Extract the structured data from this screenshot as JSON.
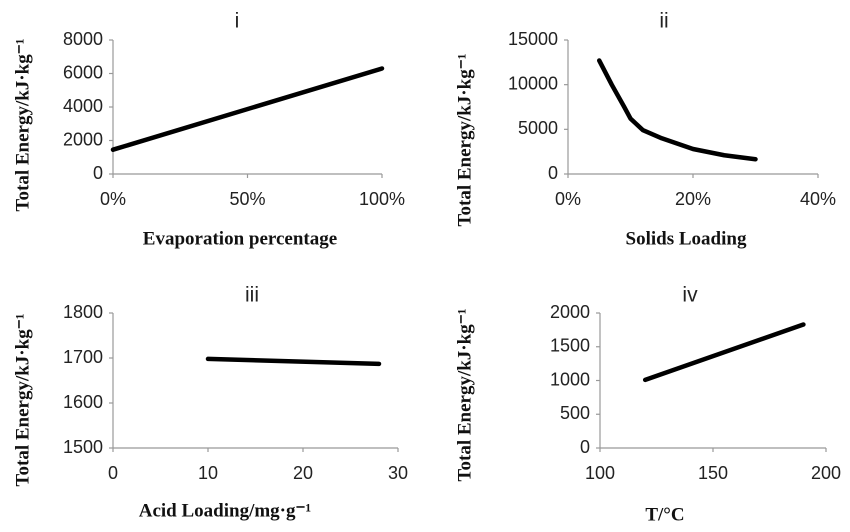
{
  "chart_data": [
    {
      "type": "line",
      "title": "i",
      "ylabel": "Total Energy/kJ·kg⁻¹",
      "xlabel": "Evaporation percentage",
      "x": [
        0,
        100
      ],
      "values": [
        1450,
        6300
      ],
      "color": "#000000",
      "xlim": [
        0,
        100
      ],
      "xticks": [
        {
          "value": 0,
          "label": "0%"
        },
        {
          "value": 50,
          "label": "50%"
        },
        {
          "value": 100,
          "label": "100%"
        }
      ],
      "ylim": [
        0,
        8000
      ],
      "yticks": [
        0,
        2000,
        4000,
        6000,
        8000
      ],
      "grid": false
    },
    {
      "type": "line",
      "title": "ii",
      "ylabel": "Total Energy/kJ·kg⁻¹",
      "xlabel": "Solids Loading",
      "x": [
        5,
        7,
        9,
        10,
        12,
        15,
        20,
        25,
        30
      ],
      "values": [
        12700,
        10000,
        7500,
        6200,
        4900,
        4000,
        2800,
        2100,
        1650
      ],
      "color": "#000000",
      "xlim": [
        0,
        40
      ],
      "xticks": [
        {
          "value": 0,
          "label": "0%"
        },
        {
          "value": 20,
          "label": "20%"
        },
        {
          "value": 40,
          "label": "40%"
        }
      ],
      "ylim": [
        0,
        15000
      ],
      "yticks": [
        0,
        5000,
        10000,
        15000
      ],
      "grid": false
    },
    {
      "type": "line",
      "title": "iii",
      "ylabel": "Total Energy/kJ·kg⁻¹",
      "xlabel": "Acid Loading/mg·g⁻¹",
      "x": [
        10,
        28
      ],
      "values": [
        1698,
        1687
      ],
      "color": "#000000",
      "xlim": [
        0,
        30
      ],
      "xticks": [
        0,
        10,
        20,
        30
      ],
      "ylim": [
        1500,
        1800
      ],
      "yticks": [
        1500,
        1600,
        1700,
        1800
      ],
      "grid": false
    },
    {
      "type": "line",
      "title": "iv",
      "ylabel": "Total Energy/kJ·kg⁻¹",
      "xlabel": "T/°C",
      "x": [
        120,
        190
      ],
      "values": [
        1010,
        1830
      ],
      "color": "#000000",
      "xlim": [
        100,
        200
      ],
      "xticks": [
        100,
        150,
        200
      ],
      "ylim": [
        0,
        2000
      ],
      "yticks": [
        0,
        500,
        1000,
        1500,
        2000
      ],
      "grid": false
    }
  ]
}
